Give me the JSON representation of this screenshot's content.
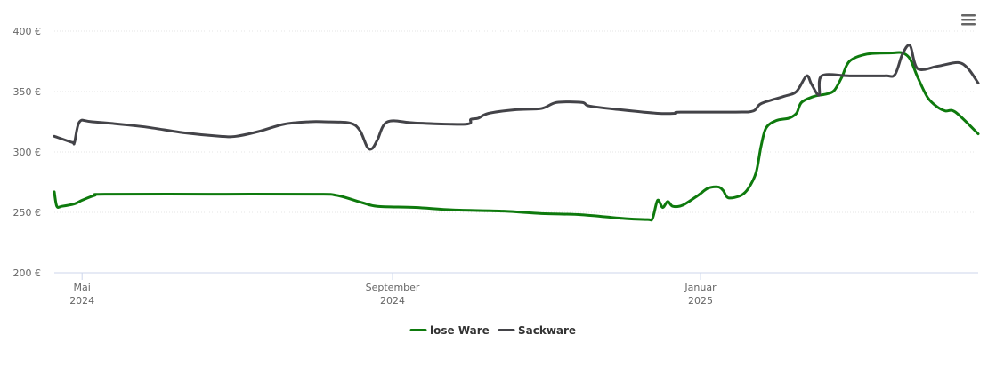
{
  "chart_data": {
    "type": "line",
    "title": "",
    "xlabel": "",
    "ylabel": "",
    "ylim": [
      200,
      400
    ],
    "y_ticks": [
      {
        "value": 200,
        "label": "200 €"
      },
      {
        "value": 250,
        "label": "250 €"
      },
      {
        "value": 300,
        "label": "300 €"
      },
      {
        "value": 350,
        "label": "350 €"
      },
      {
        "value": 400,
        "label": "400 €"
      }
    ],
    "xlim": [
      "2024-04-20",
      "2025-04-21"
    ],
    "x_ticks": [
      {
        "date": "2024-05-01",
        "label": "Mai",
        "sublabel": "2024"
      },
      {
        "date": "2024-09-01",
        "label": "September",
        "sublabel": "2024"
      },
      {
        "date": "2025-01-01",
        "label": "Januar",
        "sublabel": "2025"
      }
    ],
    "grid": true,
    "legend_position": "bottom-center",
    "series": [
      {
        "name": "lose Ware",
        "color": "#0e7a0d",
        "points": [
          [
            "2024-04-20",
            267
          ],
          [
            "2024-04-21",
            255
          ],
          [
            "2024-04-23",
            255
          ],
          [
            "2024-04-28",
            257
          ],
          [
            "2024-05-01",
            260
          ],
          [
            "2024-05-06",
            264
          ],
          [
            "2024-05-10",
            265
          ],
          [
            "2024-06-20",
            265
          ],
          [
            "2024-08-01",
            265
          ],
          [
            "2024-08-10",
            264
          ],
          [
            "2024-08-20",
            258
          ],
          [
            "2024-08-26",
            255
          ],
          [
            "2024-09-10",
            254
          ],
          [
            "2024-09-25",
            252
          ],
          [
            "2024-10-15",
            251
          ],
          [
            "2024-10-30",
            249
          ],
          [
            "2024-11-15",
            248
          ],
          [
            "2024-12-01",
            245
          ],
          [
            "2024-12-11",
            244
          ],
          [
            "2024-12-13",
            245
          ],
          [
            "2024-12-15",
            260
          ],
          [
            "2024-12-17",
            254
          ],
          [
            "2024-12-19",
            259
          ],
          [
            "2024-12-21",
            255
          ],
          [
            "2024-12-25",
            256
          ],
          [
            "2024-12-31",
            264
          ],
          [
            "2025-01-04",
            270
          ],
          [
            "2025-01-08",
            271
          ],
          [
            "2025-01-10",
            268
          ],
          [
            "2025-01-12",
            262
          ],
          [
            "2025-01-17",
            264
          ],
          [
            "2025-01-20",
            270
          ],
          [
            "2025-01-23",
            283
          ],
          [
            "2025-01-25",
            305
          ],
          [
            "2025-01-27",
            320
          ],
          [
            "2025-01-31",
            326
          ],
          [
            "2025-02-05",
            328
          ],
          [
            "2025-02-08",
            332
          ],
          [
            "2025-02-10",
            341
          ],
          [
            "2025-02-15",
            346
          ],
          [
            "2025-02-20",
            348
          ],
          [
            "2025-02-23",
            351
          ],
          [
            "2025-02-26",
            362
          ],
          [
            "2025-03-01",
            375
          ],
          [
            "2025-03-08",
            381
          ],
          [
            "2025-03-18",
            382
          ],
          [
            "2025-03-22",
            382
          ],
          [
            "2025-03-25",
            377
          ],
          [
            "2025-03-28",
            362
          ],
          [
            "2025-04-01",
            345
          ],
          [
            "2025-04-05",
            337
          ],
          [
            "2025-04-08",
            334
          ],
          [
            "2025-04-12",
            333
          ],
          [
            "2025-04-21",
            315
          ]
        ]
      },
      {
        "name": "Sackware",
        "color": "#434348",
        "points": [
          [
            "2024-04-20",
            313
          ],
          [
            "2024-04-27",
            308
          ],
          [
            "2024-04-28",
            308
          ],
          [
            "2024-04-30",
            325
          ],
          [
            "2024-05-05",
            325
          ],
          [
            "2024-05-25",
            321
          ],
          [
            "2024-06-10",
            316
          ],
          [
            "2024-06-25",
            313
          ],
          [
            "2024-07-01",
            313
          ],
          [
            "2024-07-10",
            317
          ],
          [
            "2024-07-20",
            323
          ],
          [
            "2024-07-30",
            325
          ],
          [
            "2024-08-05",
            325
          ],
          [
            "2024-08-15",
            324
          ],
          [
            "2024-08-19",
            318
          ],
          [
            "2024-08-22",
            304
          ],
          [
            "2024-08-24",
            303
          ],
          [
            "2024-08-26",
            310
          ],
          [
            "2024-08-30",
            325
          ],
          [
            "2024-09-10",
            324
          ],
          [
            "2024-09-30",
            323
          ],
          [
            "2024-10-02",
            327
          ],
          [
            "2024-10-05",
            328
          ],
          [
            "2024-10-09",
            332
          ],
          [
            "2024-10-20",
            335
          ],
          [
            "2024-10-30",
            336
          ],
          [
            "2024-11-05",
            341
          ],
          [
            "2024-11-15",
            341
          ],
          [
            "2024-11-18",
            338
          ],
          [
            "2024-11-30",
            335
          ],
          [
            "2024-12-15",
            332
          ],
          [
            "2024-12-22",
            332
          ],
          [
            "2024-12-24",
            333
          ],
          [
            "2025-01-15",
            333
          ],
          [
            "2025-01-22",
            334
          ],
          [
            "2025-01-25",
            340
          ],
          [
            "2025-02-03",
            346
          ],
          [
            "2025-02-08",
            350
          ],
          [
            "2025-02-12",
            363
          ],
          [
            "2025-02-14",
            356
          ],
          [
            "2025-02-17",
            347
          ],
          [
            "2025-02-18",
            363
          ],
          [
            "2025-03-01",
            363
          ],
          [
            "2025-03-15",
            363
          ],
          [
            "2025-03-19",
            364
          ],
          [
            "2025-03-22",
            381
          ],
          [
            "2025-03-25",
            388
          ],
          [
            "2025-03-28",
            369
          ],
          [
            "2025-04-05",
            371
          ],
          [
            "2025-04-13",
            374
          ],
          [
            "2025-04-17",
            369
          ],
          [
            "2025-04-21",
            357
          ]
        ]
      }
    ]
  }
}
